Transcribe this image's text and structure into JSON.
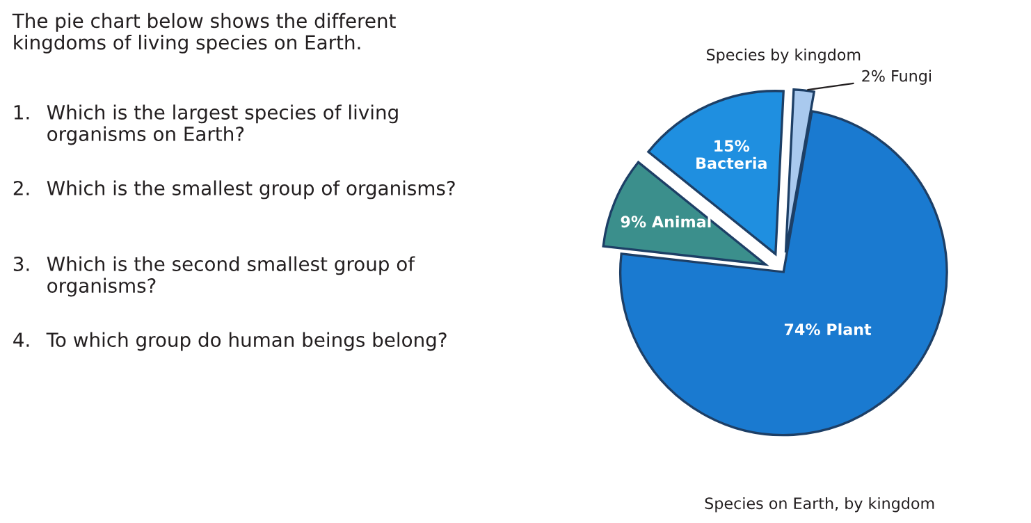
{
  "chart_data": {
    "type": "pie",
    "title": "Species by kingdom",
    "categories": [
      "Fungi",
      "Bacteria",
      "Animal",
      "Plant"
    ],
    "values": [
      2,
      15,
      9,
      74
    ],
    "colors": [
      "#a9c9ee",
      "#1f8fe0",
      "#3b8f8c",
      "#1a7ad0"
    ],
    "value_labels": [
      "2%",
      "15%",
      "9%",
      "74%"
    ],
    "annotations": [
      "The pie chart below shows the different kingdoms of living species on Earth.",
      "1. Which is the largest species of living organisms on Earth?",
      "2. Which is the smallest group of organisms?",
      "3. Which is the second smallest group of organisms?",
      "4. To which group do human beings belong?",
      "Species on Earth, by kingdom"
    ]
  }
}
